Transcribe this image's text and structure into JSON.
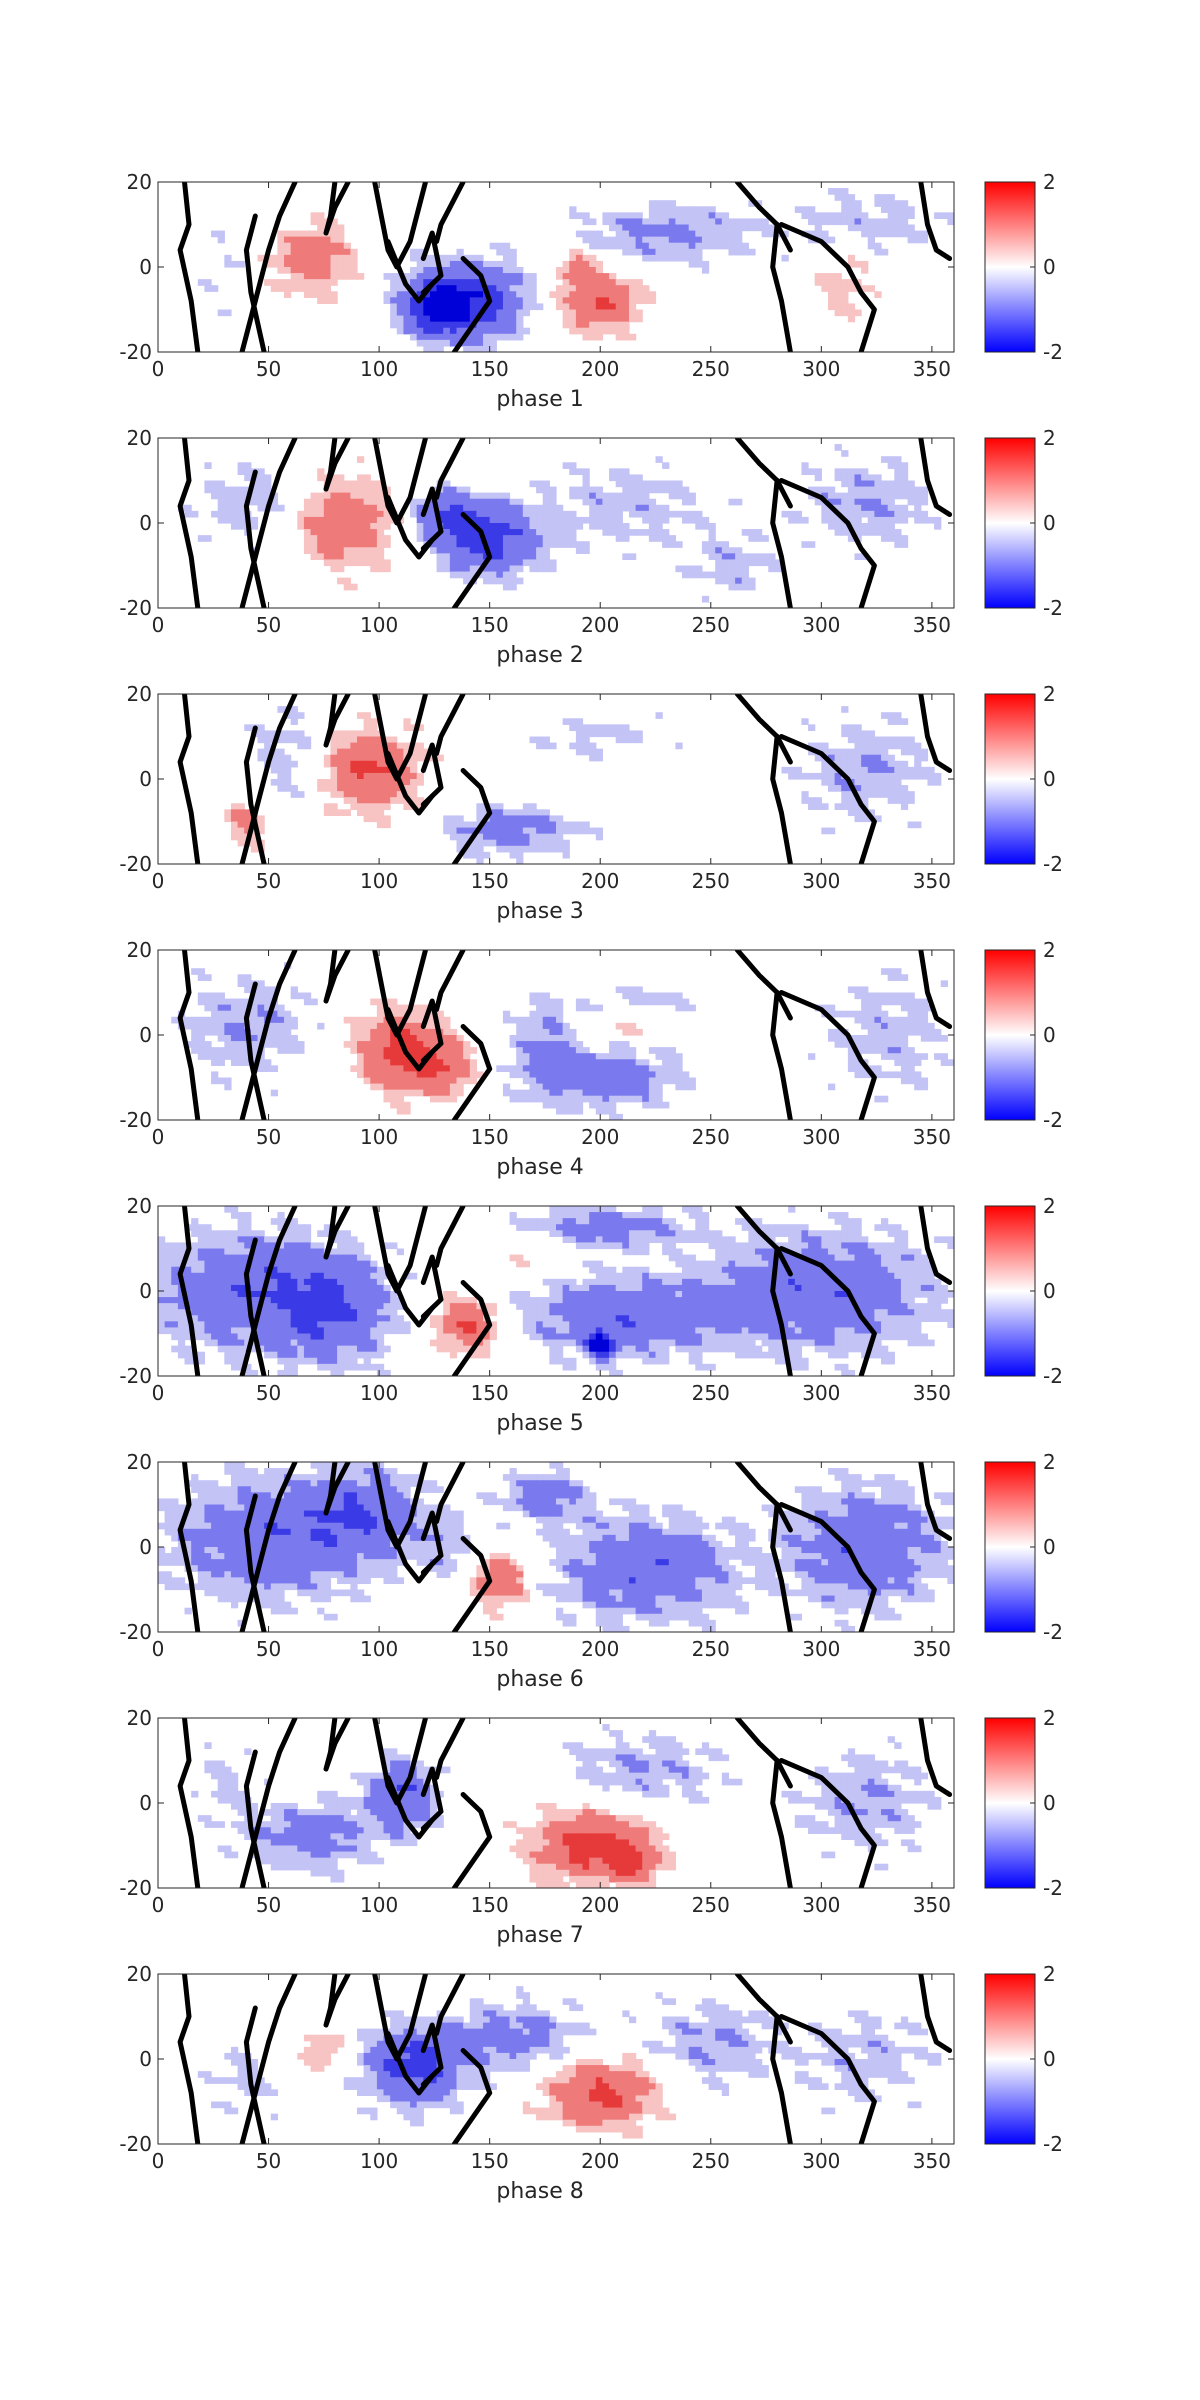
{
  "chart_data": {
    "type": "heatmap",
    "panels": [
      {
        "xlabel": "phase 1",
        "xlim": [
          0,
          360
        ],
        "ylim": [
          -20,
          20
        ],
        "xticks": [
          "0",
          "50",
          "100",
          "150",
          "200",
          "250",
          "300",
          "350"
        ],
        "yticks": [
          "20",
          "0",
          "-20"
        ],
        "blobs": [
          {
            "x": 70,
            "y": 2,
            "rx": 18,
            "ry": 8,
            "v": 0.8
          },
          {
            "x": 140,
            "y": -8,
            "rx": 25,
            "ry": 9,
            "v": -1.4
          },
          {
            "x": 125,
            "y": -10,
            "rx": 14,
            "ry": 6,
            "v": -1.0
          },
          {
            "x": 200,
            "y": -8,
            "rx": 18,
            "ry": 7,
            "v": 1.0
          },
          {
            "x": 190,
            "y": 0,
            "rx": 10,
            "ry": 4,
            "v": 0.6
          },
          {
            "x": 230,
            "y": 8,
            "rx": 40,
            "ry": 7,
            "v": -0.6
          },
          {
            "x": 310,
            "y": -3,
            "rx": 14,
            "ry": 10,
            "v": 0.4
          },
          {
            "x": 320,
            "y": 10,
            "rx": 35,
            "ry": 8,
            "v": -0.4
          },
          {
            "x": 30,
            "y": -2,
            "rx": 12,
            "ry": 12,
            "v": -0.2
          }
        ]
      },
      {
        "xlabel": "phase 2",
        "xlim": [
          0,
          360
        ],
        "ylim": [
          -20,
          20
        ],
        "xticks": [
          "0",
          "50",
          "100",
          "150",
          "200",
          "250",
          "300",
          "350"
        ],
        "yticks": [
          "20",
          "0",
          "-20"
        ],
        "blobs": [
          {
            "x": 85,
            "y": 0,
            "rx": 22,
            "ry": 10,
            "v": 0.9
          },
          {
            "x": 150,
            "y": -4,
            "rx": 22,
            "ry": 8,
            "v": -1.2
          },
          {
            "x": 130,
            "y": 2,
            "rx": 15,
            "ry": 6,
            "v": -0.9
          },
          {
            "x": 210,
            "y": 4,
            "rx": 40,
            "ry": 10,
            "v": -0.4
          },
          {
            "x": 320,
            "y": 5,
            "rx": 30,
            "ry": 10,
            "v": -0.5
          },
          {
            "x": 40,
            "y": 5,
            "rx": 25,
            "ry": 10,
            "v": -0.4
          },
          {
            "x": 260,
            "y": -10,
            "rx": 20,
            "ry": 8,
            "v": -0.4
          }
        ]
      },
      {
        "xlabel": "phase 3",
        "xlim": [
          0,
          360
        ],
        "ylim": [
          -20,
          20
        ],
        "xticks": [
          "0",
          "50",
          "100",
          "150",
          "200",
          "250",
          "300",
          "350"
        ],
        "yticks": [
          "20",
          "0",
          "-20"
        ],
        "blobs": [
          {
            "x": 95,
            "y": 2,
            "rx": 22,
            "ry": 9,
            "v": 1.1
          },
          {
            "x": 40,
            "y": -10,
            "rx": 10,
            "ry": 6,
            "v": 0.6
          },
          {
            "x": 160,
            "y": -12,
            "rx": 30,
            "ry": 6,
            "v": -0.7
          },
          {
            "x": 60,
            "y": 5,
            "rx": 20,
            "ry": 12,
            "v": -0.4
          },
          {
            "x": 320,
            "y": 2,
            "rx": 30,
            "ry": 12,
            "v": -0.5
          },
          {
            "x": 200,
            "y": 10,
            "rx": 35,
            "ry": 6,
            "v": -0.3
          },
          {
            "x": 220,
            "y": 4,
            "rx": 12,
            "ry": 3,
            "v": 0.3
          }
        ]
      },
      {
        "xlabel": "phase 4",
        "xlim": [
          0,
          360
        ],
        "ylim": [
          -20,
          20
        ],
        "xticks": [
          "0",
          "50",
          "100",
          "150",
          "200",
          "250",
          "300",
          "350"
        ],
        "yticks": [
          "20",
          "0",
          "-20"
        ],
        "blobs": [
          {
            "x": 110,
            "y": -4,
            "rx": 20,
            "ry": 9,
            "v": 1.2
          },
          {
            "x": 130,
            "y": -8,
            "rx": 14,
            "ry": 6,
            "v": 0.7
          },
          {
            "x": 200,
            "y": -10,
            "rx": 35,
            "ry": 7,
            "v": -0.8
          },
          {
            "x": 220,
            "y": 8,
            "rx": 30,
            "ry": 5,
            "v": -0.3
          },
          {
            "x": 210,
            "y": 2,
            "rx": 20,
            "ry": 3,
            "v": 0.3
          },
          {
            "x": 330,
            "y": 0,
            "rx": 30,
            "ry": 14,
            "v": -0.4
          },
          {
            "x": 40,
            "y": 2,
            "rx": 30,
            "ry": 12,
            "v": -0.5
          },
          {
            "x": 175,
            "y": 0,
            "rx": 15,
            "ry": 10,
            "v": -0.5
          }
        ]
      },
      {
        "xlabel": "phase 5",
        "xlim": [
          0,
          360
        ],
        "ylim": [
          -20,
          20
        ],
        "xticks": [
          "0",
          "50",
          "100",
          "150",
          "200",
          "250",
          "300",
          "350"
        ],
        "yticks": [
          "20",
          "0",
          "-20"
        ],
        "blobs": [
          {
            "x": 40,
            "y": 0,
            "rx": 45,
            "ry": 14,
            "v": -0.9
          },
          {
            "x": 80,
            "y": -5,
            "rx": 25,
            "ry": 12,
            "v": -0.8
          },
          {
            "x": 210,
            "y": -6,
            "rx": 45,
            "ry": 9,
            "v": -0.9
          },
          {
            "x": 300,
            "y": 0,
            "rx": 50,
            "ry": 14,
            "v": -0.9
          },
          {
            "x": 140,
            "y": -8,
            "rx": 14,
            "ry": 6,
            "v": 1.1
          },
          {
            "x": 200,
            "y": -13,
            "rx": 6,
            "ry": 3,
            "v": -1.5
          },
          {
            "x": 200,
            "y": 15,
            "rx": 40,
            "ry": 5,
            "v": -0.7
          },
          {
            "x": 170,
            "y": 10,
            "rx": 20,
            "ry": 5,
            "v": 0.3
          }
        ]
      },
      {
        "xlabel": "phase 6",
        "xlim": [
          0,
          360
        ],
        "ylim": [
          -20,
          20
        ],
        "xticks": [
          "0",
          "50",
          "100",
          "150",
          "200",
          "250",
          "300",
          "350"
        ],
        "yticks": [
          "20",
          "0",
          "-20"
        ],
        "blobs": [
          {
            "x": 50,
            "y": 2,
            "rx": 45,
            "ry": 14,
            "v": -0.9
          },
          {
            "x": 95,
            "y": 8,
            "rx": 25,
            "ry": 10,
            "v": -0.8
          },
          {
            "x": 220,
            "y": -5,
            "rx": 40,
            "ry": 12,
            "v": -0.9
          },
          {
            "x": 320,
            "y": 0,
            "rx": 35,
            "ry": 14,
            "v": -0.9
          },
          {
            "x": 155,
            "y": -8,
            "rx": 12,
            "ry": 6,
            "v": 1.0
          },
          {
            "x": 175,
            "y": 12,
            "rx": 20,
            "ry": 6,
            "v": -0.7
          },
          {
            "x": 130,
            "y": 0,
            "rx": 10,
            "ry": 8,
            "v": -0.4
          }
        ]
      },
      {
        "xlabel": "phase 7",
        "xlim": [
          0,
          360
        ],
        "ylim": [
          -20,
          20
        ],
        "xticks": [
          "0",
          "50",
          "100",
          "150",
          "200",
          "250",
          "300",
          "350"
        ],
        "yticks": [
          "20",
          "0",
          "-20"
        ],
        "blobs": [
          {
            "x": 195,
            "y": -10,
            "rx": 25,
            "ry": 8,
            "v": 1.2
          },
          {
            "x": 215,
            "y": -14,
            "rx": 12,
            "ry": 5,
            "v": 0.8
          },
          {
            "x": 110,
            "y": 2,
            "rx": 15,
            "ry": 8,
            "v": -1.0
          },
          {
            "x": 70,
            "y": -8,
            "rx": 30,
            "ry": 8,
            "v": -0.7
          },
          {
            "x": 220,
            "y": 8,
            "rx": 35,
            "ry": 8,
            "v": -0.5
          },
          {
            "x": 320,
            "y": 0,
            "rx": 30,
            "ry": 12,
            "v": -0.5
          },
          {
            "x": 30,
            "y": 5,
            "rx": 15,
            "ry": 10,
            "v": -0.3
          }
        ]
      },
      {
        "xlabel": "phase 8",
        "xlim": [
          0,
          360
        ],
        "ylim": [
          -20,
          20
        ],
        "xticks": [
          "0",
          "50",
          "100",
          "150",
          "200",
          "250",
          "300",
          "350"
        ],
        "yticks": [
          "20",
          "0",
          "-20"
        ],
        "blobs": [
          {
            "x": 200,
            "y": -8,
            "rx": 25,
            "ry": 8,
            "v": 1.1
          },
          {
            "x": 115,
            "y": -2,
            "rx": 22,
            "ry": 9,
            "v": -1.2
          },
          {
            "x": 160,
            "y": 5,
            "rx": 30,
            "ry": 8,
            "v": -0.7
          },
          {
            "x": 75,
            "y": 2,
            "rx": 12,
            "ry": 5,
            "v": 0.5
          },
          {
            "x": 250,
            "y": 4,
            "rx": 30,
            "ry": 10,
            "v": -0.5
          },
          {
            "x": 320,
            "y": 0,
            "rx": 30,
            "ry": 12,
            "v": -0.4
          },
          {
            "x": 40,
            "y": -5,
            "rx": 20,
            "ry": 10,
            "v": -0.3
          }
        ]
      }
    ],
    "colorbar": {
      "ticks": [
        "2",
        "0",
        "-2"
      ],
      "range": [
        -2,
        2
      ],
      "colors": {
        "high": "#ff0000",
        "mid": "#ffffff",
        "low": "#0000ff"
      }
    },
    "coastline_color": "#000000"
  }
}
